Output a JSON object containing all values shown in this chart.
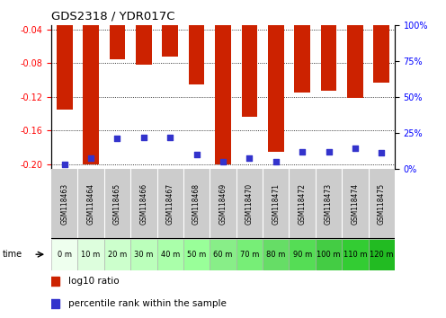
{
  "title": "GDS2318 / YDR017C",
  "samples": [
    "GSM118463",
    "GSM118464",
    "GSM118465",
    "GSM118466",
    "GSM118467",
    "GSM118468",
    "GSM118469",
    "GSM118470",
    "GSM118471",
    "GSM118472",
    "GSM118473",
    "GSM118474",
    "GSM118475"
  ],
  "time_labels": [
    "0 m",
    "10 m",
    "20 m",
    "30 m",
    "40 m",
    "50 m",
    "60 m",
    "70 m",
    "80 m",
    "90 m",
    "100 m",
    "110 m",
    "120 m"
  ],
  "log10_ratio": [
    -0.135,
    -0.2,
    -0.075,
    -0.082,
    -0.072,
    -0.105,
    -0.2,
    -0.143,
    -0.185,
    -0.115,
    -0.113,
    -0.121,
    -0.103
  ],
  "percentile_rank": [
    3,
    7,
    21,
    22,
    22,
    10,
    5,
    7,
    5,
    12,
    12,
    14,
    11
  ],
  "ylim_left": [
    -0.205,
    -0.035
  ],
  "ylim_right": [
    0,
    100
  ],
  "yticks_left": [
    -0.2,
    -0.16,
    -0.12,
    -0.08,
    -0.04
  ],
  "yticks_right": [
    0,
    25,
    50,
    75,
    100
  ],
  "bar_color": "#cc2200",
  "dot_color": "#3333cc",
  "bar_width": 0.6,
  "bg_plot": "#ffffff",
  "gray_label_bg": "#cccccc",
  "legend_red": "log10 ratio",
  "legend_blue": "percentile rank within the sample",
  "time_arrow_label": "time",
  "green_stops": [
    "#eeffee",
    "#ddfedd",
    "#ccffcc",
    "#bbffbb",
    "#aaffaa",
    "#99ff99",
    "#88ee88",
    "#77ee77",
    "#66dd66",
    "#55dd55",
    "#44cc44",
    "#33cc33",
    "#22bb22"
  ]
}
